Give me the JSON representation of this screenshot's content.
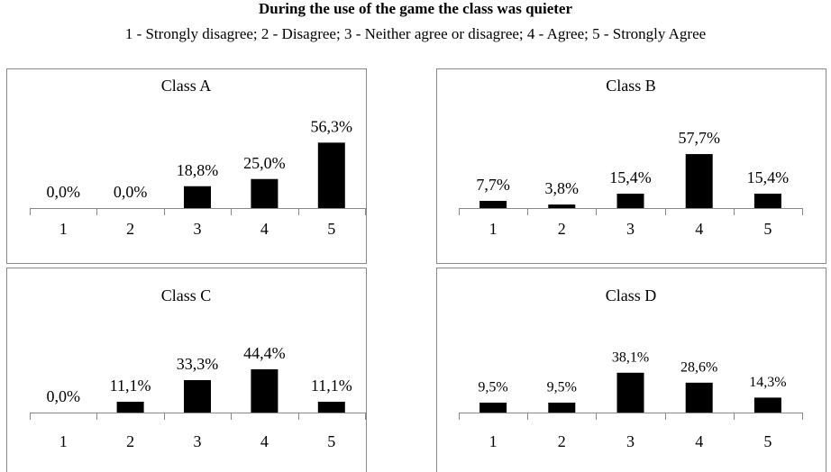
{
  "title": "During the use of the game the class was quieter",
  "subtitle": "1 - Strongly disagree; 2 - Disagree; 3 - Neither agree or disagree; 4 - Agree; 5 - Strongly Agree",
  "chart_data": [
    {
      "type": "bar",
      "title": "Class A",
      "categories": [
        "1",
        "2",
        "3",
        "4",
        "5"
      ],
      "values": [
        0,
        0,
        18.8,
        25,
        56.3
      ],
      "value_labels": [
        "0,0%",
        "0,0%",
        "18,8%",
        "25,0%",
        "56,3%"
      ],
      "color": "#000000",
      "ylim": [
        0,
        62
      ]
    },
    {
      "type": "bar",
      "title": "Class B",
      "categories": [
        "1",
        "2",
        "3",
        "4",
        "5"
      ],
      "values": [
        7.7,
        3.8,
        15.4,
        57.7,
        15.4
      ],
      "value_labels": [
        "7,7%",
        "3,8%",
        "15,4%",
        "57,7%",
        "15,4%"
      ],
      "color": "#000000",
      "ylim": [
        0,
        77
      ]
    },
    {
      "type": "bar",
      "title": "Class C",
      "categories": [
        "1",
        "2",
        "3",
        "4",
        "5"
      ],
      "values": [
        0,
        11.1,
        33.3,
        44.4,
        11.1
      ],
      "value_labels": [
        "0,0%",
        "11,1%",
        "33,3%",
        "44,4%",
        "11,1%"
      ],
      "color": "#000000",
      "ylim": [
        0,
        74
      ]
    },
    {
      "type": "bar",
      "title": "Class D",
      "categories": [
        "1",
        "2",
        "3",
        "4",
        "5"
      ],
      "values": [
        9.5,
        9.5,
        38.1,
        28.6,
        14.3
      ],
      "value_labels": [
        "9,5%",
        "9,5%",
        "38,1%",
        "28,6%",
        "14,3%"
      ],
      "color": "#000000",
      "ylim": [
        0,
        69
      ]
    }
  ]
}
